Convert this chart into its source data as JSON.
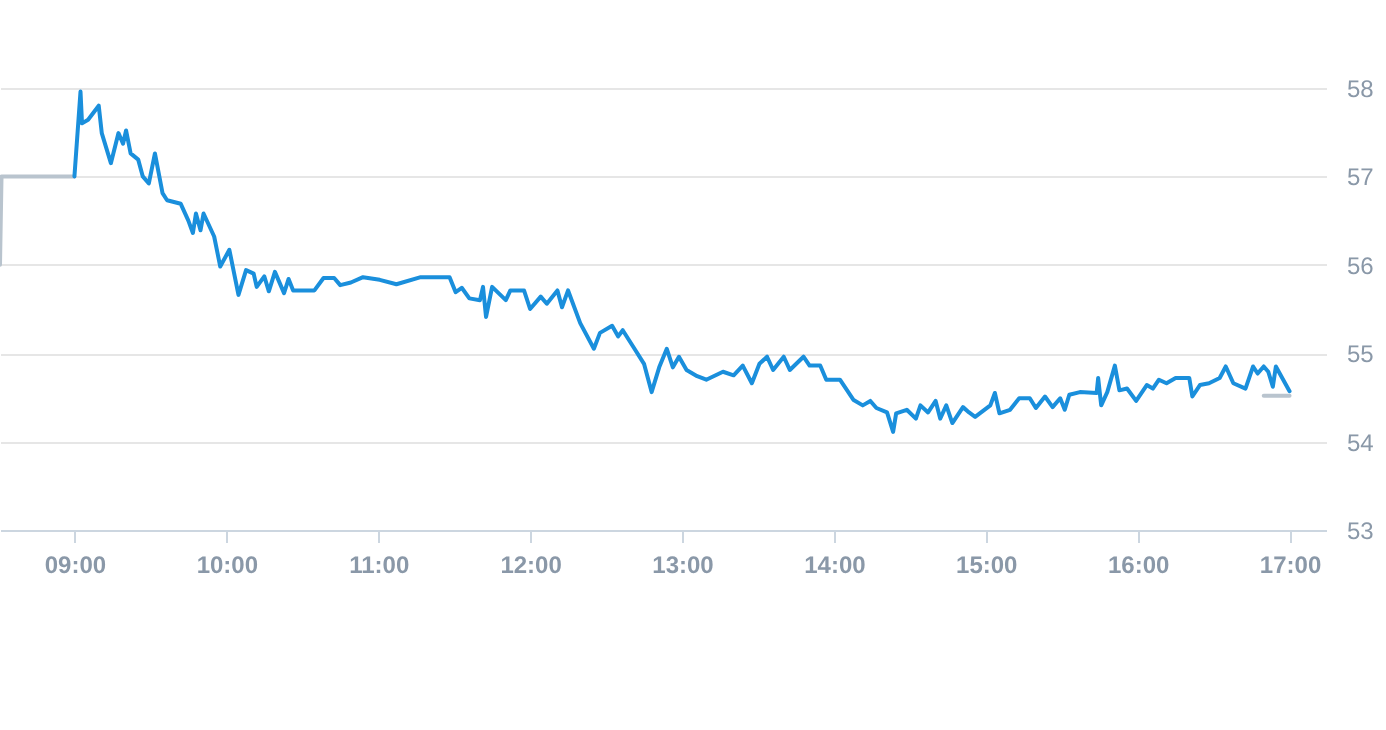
{
  "chart_data": {
    "type": "line",
    "xlim": [
      8.51,
      17.24
    ],
    "ylim": [
      53,
      58
    ],
    "xticks": [
      {
        "value": 9,
        "label": "09:00"
      },
      {
        "value": 10,
        "label": "10:00"
      },
      {
        "value": 11,
        "label": "11:00"
      },
      {
        "value": 12,
        "label": "12:00"
      },
      {
        "value": 13,
        "label": "13:00"
      },
      {
        "value": 14,
        "label": "14:00"
      },
      {
        "value": 15,
        "label": "15:00"
      },
      {
        "value": 16,
        "label": "16:00"
      },
      {
        "value": 17,
        "label": "17:00"
      }
    ],
    "yticks": [
      53,
      54,
      55,
      56,
      57,
      58
    ],
    "grid": "y",
    "marker": "none",
    "line_style": "solid",
    "series": [
      {
        "color": "#b9c4ce",
        "x": [
          8.51,
          8.52,
          9.0
        ],
        "values": [
          56.0,
          57.0,
          57.0
        ]
      },
      {
        "color": "#b9c4ce",
        "x": [
          16.83,
          17.0
        ],
        "values": [
          54.52,
          54.52
        ]
      },
      {
        "color": "#1a8fdc",
        "x": [
          9.0,
          9.04,
          9.05,
          9.09,
          9.16,
          9.18,
          9.24,
          9.29,
          9.32,
          9.34,
          9.37,
          9.42,
          9.45,
          9.49,
          9.53,
          9.58,
          9.61,
          9.7,
          9.75,
          9.78,
          9.8,
          9.83,
          9.85,
          9.92,
          9.96,
          10.02,
          10.08,
          10.13,
          10.18,
          10.2,
          10.25,
          10.28,
          10.32,
          10.38,
          10.41,
          10.44,
          10.58,
          10.64,
          10.71,
          10.75,
          10.82,
          10.9,
          11.01,
          11.12,
          11.28,
          11.47,
          11.51,
          11.55,
          11.6,
          11.67,
          11.69,
          11.71,
          11.75,
          11.84,
          11.87,
          11.96,
          12.0,
          12.07,
          12.11,
          12.18,
          12.21,
          12.25,
          12.33,
          12.42,
          12.46,
          12.54,
          12.58,
          12.61,
          12.68,
          12.75,
          12.8,
          12.85,
          12.9,
          12.94,
          12.98,
          13.03,
          13.1,
          13.16,
          13.27,
          13.34,
          13.4,
          13.46,
          13.51,
          13.56,
          13.6,
          13.67,
          13.71,
          13.8,
          13.84,
          13.91,
          13.95,
          14.04,
          14.13,
          14.19,
          14.24,
          14.28,
          14.35,
          14.39,
          14.41,
          14.48,
          14.54,
          14.57,
          14.62,
          14.67,
          14.7,
          14.74,
          14.78,
          14.85,
          14.89,
          14.93,
          15.03,
          15.06,
          15.09,
          15.16,
          15.22,
          15.29,
          15.33,
          15.39,
          15.44,
          15.49,
          15.52,
          15.55,
          15.62,
          15.73,
          15.74,
          15.76,
          15.8,
          15.85,
          15.88,
          15.93,
          15.99,
          16.06,
          16.1,
          16.14,
          16.19,
          16.25,
          16.34,
          16.36,
          16.41,
          16.47,
          16.54,
          16.58,
          16.63,
          16.71,
          16.76,
          16.79,
          16.83,
          16.86,
          16.89,
          16.91,
          17.0
        ],
        "values": [
          57.0,
          57.96,
          57.6,
          57.64,
          57.8,
          57.49,
          57.15,
          57.49,
          57.37,
          57.52,
          57.26,
          57.19,
          57.0,
          56.92,
          57.26,
          56.81,
          56.73,
          56.69,
          56.5,
          56.36,
          56.58,
          56.39,
          56.58,
          56.32,
          55.98,
          56.17,
          55.66,
          55.94,
          55.9,
          55.75,
          55.87,
          55.7,
          55.92,
          55.68,
          55.84,
          55.71,
          55.71,
          55.85,
          55.85,
          55.77,
          55.8,
          55.86,
          55.83,
          55.78,
          55.86,
          55.86,
          55.69,
          55.74,
          55.62,
          55.6,
          55.75,
          55.41,
          55.75,
          55.6,
          55.71,
          55.71,
          55.5,
          55.64,
          55.56,
          55.71,
          55.52,
          55.71,
          55.34,
          55.05,
          55.23,
          55.31,
          55.19,
          55.26,
          55.07,
          54.88,
          54.56,
          54.84,
          55.05,
          54.84,
          54.96,
          54.81,
          54.74,
          54.7,
          54.79,
          54.75,
          54.86,
          54.66,
          54.88,
          54.96,
          54.81,
          54.96,
          54.81,
          54.96,
          54.86,
          54.86,
          54.7,
          54.7,
          54.47,
          54.41,
          54.46,
          54.38,
          54.33,
          54.11,
          54.32,
          54.36,
          54.26,
          54.41,
          54.33,
          54.46,
          54.26,
          54.41,
          54.21,
          54.39,
          54.33,
          54.28,
          54.41,
          54.55,
          54.32,
          54.36,
          54.49,
          54.49,
          54.38,
          54.51,
          54.39,
          54.49,
          54.36,
          54.53,
          54.56,
          54.55,
          54.72,
          54.41,
          54.56,
          54.86,
          54.58,
          54.6,
          54.46,
          54.64,
          54.6,
          54.7,
          54.66,
          54.72,
          54.72,
          54.51,
          54.64,
          54.66,
          54.72,
          54.85,
          54.66,
          54.6,
          54.85,
          54.77,
          54.85,
          54.79,
          54.62,
          54.85,
          54.57
        ]
      }
    ]
  }
}
